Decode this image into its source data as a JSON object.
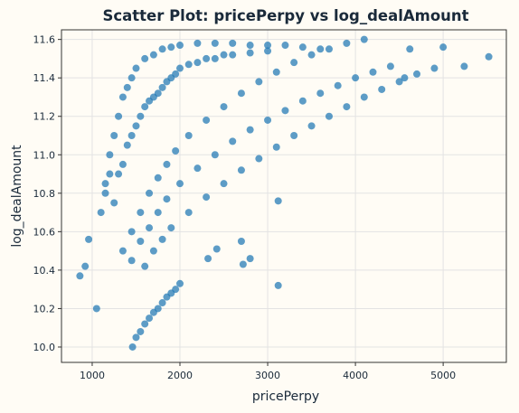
{
  "chart_data": {
    "type": "scatter",
    "title": "Scatter Plot: pricePerpy vs log_dealAmount",
    "xlabel": "pricePerpy",
    "ylabel": "log_dealAmount",
    "xlim": [
      650,
      5720
    ],
    "ylim": [
      9.92,
      11.65
    ],
    "x_ticks": [
      1000,
      2000,
      3000,
      4000,
      5000
    ],
    "y_ticks": [
      10.0,
      10.2,
      10.4,
      10.6,
      10.8,
      11.0,
      11.2,
      11.4,
      11.6
    ],
    "grid": true,
    "point_color": "#1f77b4",
    "point_alpha": 0.72,
    "series": [
      {
        "description_note": "dense upper cloud",
        "values": [
          [
            1150,
            10.85
          ],
          [
            1200,
            11.0
          ],
          [
            1250,
            11.1
          ],
          [
            1300,
            11.2
          ],
          [
            1350,
            11.3
          ],
          [
            1400,
            11.35
          ],
          [
            1450,
            11.4
          ],
          [
            1500,
            11.45
          ],
          [
            1600,
            11.5
          ],
          [
            1700,
            11.52
          ],
          [
            1800,
            11.55
          ],
          [
            1900,
            11.56
          ],
          [
            2000,
            11.57
          ],
          [
            2200,
            11.58
          ],
          [
            2400,
            11.58
          ],
          [
            2600,
            11.58
          ],
          [
            2800,
            11.57
          ],
          [
            3000,
            11.57
          ],
          [
            3200,
            11.57
          ],
          [
            3400,
            11.56
          ],
          [
            3600,
            11.55
          ],
          [
            1250,
            10.75
          ],
          [
            1300,
            10.9
          ],
          [
            1400,
            11.05
          ],
          [
            1500,
            11.15
          ],
          [
            1600,
            11.25
          ],
          [
            1700,
            11.3
          ],
          [
            1800,
            11.35
          ],
          [
            1900,
            11.4
          ],
          [
            2000,
            11.45
          ],
          [
            2200,
            11.48
          ],
          [
            2400,
            11.5
          ],
          [
            2600,
            11.52
          ],
          [
            2800,
            11.53
          ],
          [
            3000,
            11.54
          ],
          [
            1100,
            10.7
          ],
          [
            1150,
            10.8
          ],
          [
            1200,
            10.9
          ],
          [
            1350,
            10.95
          ],
          [
            1450,
            11.1
          ],
          [
            1550,
            11.2
          ],
          [
            1650,
            11.28
          ],
          [
            1750,
            11.32
          ],
          [
            1850,
            11.38
          ],
          [
            1950,
            11.42
          ],
          [
            2100,
            11.47
          ],
          [
            2300,
            11.5
          ],
          [
            2500,
            11.52
          ]
        ]
      },
      {
        "description_note": "band 2",
        "values": [
          [
            1350,
            10.5
          ],
          [
            1450,
            10.6
          ],
          [
            1550,
            10.7
          ],
          [
            1650,
            10.8
          ],
          [
            1750,
            10.88
          ],
          [
            1850,
            10.95
          ],
          [
            1950,
            11.02
          ],
          [
            2100,
            11.1
          ],
          [
            2300,
            11.18
          ],
          [
            2500,
            11.25
          ],
          [
            2700,
            11.32
          ],
          [
            2900,
            11.38
          ],
          [
            3100,
            11.43
          ],
          [
            3300,
            11.48
          ],
          [
            3500,
            11.52
          ],
          [
            3700,
            11.55
          ],
          [
            3900,
            11.58
          ],
          [
            4100,
            11.6
          ]
        ]
      },
      {
        "description_note": "band 3",
        "values": [
          [
            1450,
            10.45
          ],
          [
            1550,
            10.55
          ],
          [
            1650,
            10.62
          ],
          [
            1750,
            10.7
          ],
          [
            1850,
            10.77
          ],
          [
            2000,
            10.85
          ],
          [
            2200,
            10.93
          ],
          [
            2400,
            11.0
          ],
          [
            2600,
            11.07
          ],
          [
            2800,
            11.13
          ],
          [
            3000,
            11.18
          ],
          [
            3200,
            11.23
          ],
          [
            3400,
            11.28
          ],
          [
            3600,
            11.32
          ],
          [
            3800,
            11.36
          ],
          [
            4000,
            11.4
          ],
          [
            4200,
            11.43
          ],
          [
            4400,
            11.46
          ]
        ]
      },
      {
        "description_note": "band 4",
        "values": [
          [
            1600,
            10.42
          ],
          [
            1700,
            10.5
          ],
          [
            1800,
            10.56
          ],
          [
            1900,
            10.62
          ],
          [
            2100,
            10.7
          ],
          [
            2300,
            10.78
          ],
          [
            2500,
            10.85
          ],
          [
            2700,
            10.92
          ],
          [
            2900,
            10.98
          ],
          [
            3100,
            11.04
          ],
          [
            3300,
            11.1
          ],
          [
            3500,
            11.15
          ],
          [
            3700,
            11.2
          ],
          [
            3900,
            11.25
          ],
          [
            4100,
            11.3
          ],
          [
            4300,
            11.34
          ],
          [
            4500,
            11.38
          ],
          [
            4700,
            11.42
          ],
          [
            4900,
            11.45
          ],
          [
            5000,
            11.56
          ]
        ]
      },
      {
        "description_note": "lower band",
        "values": [
          [
            1500,
            10.05
          ],
          [
            1550,
            10.08
          ],
          [
            1600,
            10.12
          ],
          [
            1650,
            10.15
          ],
          [
            1700,
            10.18
          ],
          [
            1750,
            10.2
          ],
          [
            1800,
            10.23
          ],
          [
            1850,
            10.26
          ],
          [
            1900,
            10.28
          ],
          [
            1950,
            10.3
          ],
          [
            2000,
            10.33
          ]
        ]
      },
      {
        "description_note": "sparse points",
        "values": [
          [
            860,
            10.37
          ],
          [
            920,
            10.42
          ],
          [
            960,
            10.56
          ],
          [
            1050,
            10.2
          ],
          [
            1460,
            10.0
          ],
          [
            2320,
            10.46
          ],
          [
            2420,
            10.51
          ],
          [
            2700,
            10.55
          ],
          [
            2720,
            10.43
          ],
          [
            2800,
            10.46
          ],
          [
            3120,
            10.76
          ],
          [
            3120,
            10.32
          ],
          [
            4560,
            11.4
          ],
          [
            4620,
            11.55
          ],
          [
            5240,
            11.46
          ],
          [
            5520,
            11.51
          ]
        ]
      }
    ]
  }
}
